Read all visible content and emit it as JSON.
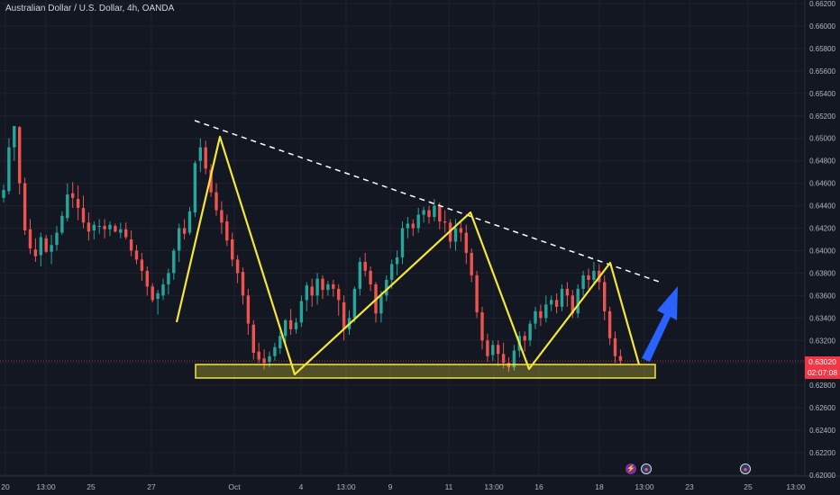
{
  "header": {
    "title": "Australian Dollar / U.S. Dollar, 4h, OANDA"
  },
  "price_badge": {
    "price": "0.63020",
    "countdown": "02:07:08"
  },
  "events": [
    {
      "icon": "lightning-icon",
      "glyph": "⚡"
    },
    {
      "icon": "us-flag-icon",
      "glyph": "●"
    },
    {
      "icon": "au-flag-icon",
      "glyph": "●"
    }
  ],
  "colors": {
    "background": "#131722",
    "grid": "#1e222d",
    "up": "#26a69a",
    "down": "#ef5350",
    "pattern": "#f5e63a",
    "trendline": "#ffffff",
    "arrow": "#2962ff",
    "current_price": "#f23645"
  },
  "chart_data": {
    "type": "candlestick",
    "symbol": "AUDUSD",
    "timeframe": "4h",
    "y_ticks": [
      "0.66200",
      "0.66000",
      "0.65800",
      "0.65600",
      "0.65400",
      "0.65200",
      "0.65000",
      "0.64800",
      "0.64600",
      "0.64400",
      "0.64200",
      "0.64000",
      "0.63800",
      "0.63600",
      "0.63400",
      "0.63200",
      "0.63000",
      "0.62800",
      "0.62600",
      "0.62400",
      "0.62200",
      "0.62000"
    ],
    "x_ticks": [
      "20",
      "13:00",
      "25",
      "27",
      "Oct",
      "4",
      "13:00",
      "9",
      "11",
      "13:00",
      "16",
      "18",
      "13:00",
      "23",
      "25",
      "13:00"
    ],
    "ylim": [
      0.62,
      0.662
    ],
    "current_price": 0.6302,
    "candles": [
      [
        0.6447,
        0.6454,
        0.6443,
        0.6459
      ],
      [
        0.6453,
        0.6492,
        0.645,
        0.65
      ],
      [
        0.6492,
        0.6511,
        0.648,
        0.6511
      ],
      [
        0.651,
        0.646,
        0.645,
        0.6511
      ],
      [
        0.646,
        0.6418,
        0.6414,
        0.6465
      ],
      [
        0.6419,
        0.6402,
        0.6397,
        0.6428
      ],
      [
        0.6401,
        0.6395,
        0.639,
        0.6411
      ],
      [
        0.6396,
        0.6412,
        0.6386,
        0.6416
      ],
      [
        0.6411,
        0.6399,
        0.6398,
        0.6414
      ],
      [
        0.6399,
        0.6405,
        0.6388,
        0.6414
      ],
      [
        0.6405,
        0.6416,
        0.64,
        0.6422
      ],
      [
        0.6416,
        0.6431,
        0.6414,
        0.6435
      ],
      [
        0.6429,
        0.645,
        0.6426,
        0.646
      ],
      [
        0.6451,
        0.6447,
        0.6438,
        0.6461
      ],
      [
        0.6446,
        0.6438,
        0.6427,
        0.6458
      ],
      [
        0.6438,
        0.6425,
        0.642,
        0.6449
      ],
      [
        0.6425,
        0.6417,
        0.6409,
        0.6434
      ],
      [
        0.6418,
        0.6423,
        0.641,
        0.6426
      ],
      [
        0.6422,
        0.6422,
        0.6415,
        0.6428
      ],
      [
        0.6422,
        0.6419,
        0.6411,
        0.6428
      ],
      [
        0.6419,
        0.6423,
        0.6413,
        0.6426
      ],
      [
        0.6422,
        0.6417,
        0.6416,
        0.6424
      ],
      [
        0.6416,
        0.6419,
        0.6411,
        0.6425
      ],
      [
        0.6419,
        0.6412,
        0.641,
        0.6425
      ],
      [
        0.641,
        0.64,
        0.6395,
        0.6418
      ],
      [
        0.64,
        0.6392,
        0.6388,
        0.6405
      ],
      [
        0.6392,
        0.6382,
        0.6373,
        0.6398
      ],
      [
        0.6382,
        0.6368,
        0.636,
        0.6386
      ],
      [
        0.6368,
        0.6356,
        0.6354,
        0.6371
      ],
      [
        0.6357,
        0.6362,
        0.6343,
        0.6365
      ],
      [
        0.636,
        0.637,
        0.6356,
        0.6375
      ],
      [
        0.637,
        0.638,
        0.6361,
        0.6384
      ],
      [
        0.638,
        0.64,
        0.6374,
        0.6402
      ],
      [
        0.64,
        0.642,
        0.639,
        0.6424
      ],
      [
        0.642,
        0.6415,
        0.641,
        0.6428
      ],
      [
        0.6416,
        0.6435,
        0.6414,
        0.6439
      ],
      [
        0.6434,
        0.6478,
        0.643,
        0.648
      ],
      [
        0.648,
        0.6492,
        0.647,
        0.65
      ],
      [
        0.6492,
        0.6473,
        0.6468,
        0.6498
      ],
      [
        0.6472,
        0.6452,
        0.6448,
        0.6477
      ],
      [
        0.6452,
        0.6436,
        0.6431,
        0.646
      ],
      [
        0.6436,
        0.6425,
        0.6415,
        0.6444
      ],
      [
        0.6426,
        0.6409,
        0.6404,
        0.6432
      ],
      [
        0.641,
        0.6392,
        0.6386,
        0.6416
      ],
      [
        0.6392,
        0.638,
        0.6371,
        0.6396
      ],
      [
        0.6381,
        0.636,
        0.6352,
        0.6385
      ],
      [
        0.636,
        0.6335,
        0.6325,
        0.6366
      ],
      [
        0.6334,
        0.6309,
        0.6303,
        0.6338
      ],
      [
        0.631,
        0.6303,
        0.63,
        0.6318
      ],
      [
        0.6304,
        0.63,
        0.6294,
        0.6312
      ],
      [
        0.6301,
        0.6306,
        0.6296,
        0.631
      ],
      [
        0.6306,
        0.6314,
        0.6302,
        0.6318
      ],
      [
        0.6313,
        0.6324,
        0.6308,
        0.6328
      ],
      [
        0.6324,
        0.6338,
        0.6315,
        0.6339
      ],
      [
        0.6338,
        0.633,
        0.6325,
        0.6348
      ],
      [
        0.633,
        0.6336,
        0.6326,
        0.634
      ],
      [
        0.6336,
        0.6355,
        0.6332,
        0.636
      ],
      [
        0.6356,
        0.6369,
        0.6346,
        0.6372
      ],
      [
        0.6368,
        0.636,
        0.635,
        0.6375
      ],
      [
        0.636,
        0.6375,
        0.6352,
        0.638
      ],
      [
        0.6375,
        0.6365,
        0.6357,
        0.6378
      ],
      [
        0.6365,
        0.637,
        0.636,
        0.6373
      ],
      [
        0.637,
        0.6366,
        0.6359,
        0.6374
      ],
      [
        0.6366,
        0.6356,
        0.6342,
        0.637
      ],
      [
        0.6354,
        0.633,
        0.632,
        0.636
      ],
      [
        0.633,
        0.634,
        0.6325,
        0.6347
      ],
      [
        0.634,
        0.6366,
        0.6336,
        0.6368
      ],
      [
        0.6366,
        0.639,
        0.636,
        0.6394
      ],
      [
        0.639,
        0.6382,
        0.6377,
        0.6398
      ],
      [
        0.6382,
        0.637,
        0.6364,
        0.6386
      ],
      [
        0.637,
        0.6344,
        0.6336,
        0.6372
      ],
      [
        0.6344,
        0.636,
        0.6336,
        0.6364
      ],
      [
        0.636,
        0.6374,
        0.6355,
        0.6378
      ],
      [
        0.6374,
        0.6388,
        0.6366,
        0.6392
      ],
      [
        0.6388,
        0.6394,
        0.6378,
        0.64
      ],
      [
        0.6394,
        0.642,
        0.6388,
        0.6426
      ],
      [
        0.642,
        0.6424,
        0.6411,
        0.643
      ],
      [
        0.6424,
        0.642,
        0.6413,
        0.6428
      ],
      [
        0.642,
        0.6432,
        0.6416,
        0.6438
      ],
      [
        0.6432,
        0.6436,
        0.6425,
        0.6439
      ],
      [
        0.6436,
        0.643,
        0.6424,
        0.644
      ],
      [
        0.643,
        0.644,
        0.6426,
        0.6446
      ],
      [
        0.644,
        0.6426,
        0.6419,
        0.6443
      ],
      [
        0.6426,
        0.6425,
        0.6416,
        0.6436
      ],
      [
        0.6425,
        0.6408,
        0.6402,
        0.6428
      ],
      [
        0.6408,
        0.642,
        0.64,
        0.6428
      ],
      [
        0.642,
        0.6416,
        0.6408,
        0.6425
      ],
      [
        0.6416,
        0.6398,
        0.6388,
        0.6423
      ],
      [
        0.6398,
        0.6378,
        0.6372,
        0.6402
      ],
      [
        0.6378,
        0.6345,
        0.634,
        0.6382
      ],
      [
        0.6345,
        0.632,
        0.6312,
        0.635
      ],
      [
        0.632,
        0.6306,
        0.6301,
        0.6326
      ],
      [
        0.6307,
        0.6316,
        0.6302,
        0.632
      ],
      [
        0.6316,
        0.6308,
        0.6297,
        0.632
      ],
      [
        0.6308,
        0.63,
        0.6295,
        0.6318
      ],
      [
        0.63,
        0.6296,
        0.6292,
        0.6305
      ],
      [
        0.6296,
        0.6311,
        0.6293,
        0.6316
      ],
      [
        0.6311,
        0.6324,
        0.6305,
        0.6328
      ],
      [
        0.6324,
        0.632,
        0.631,
        0.6328
      ],
      [
        0.632,
        0.6335,
        0.6315,
        0.6338
      ],
      [
        0.6335,
        0.6346,
        0.633,
        0.635
      ],
      [
        0.6346,
        0.634,
        0.6333,
        0.6352
      ],
      [
        0.634,
        0.6352,
        0.6336,
        0.636
      ],
      [
        0.6352,
        0.6356,
        0.6346,
        0.636
      ],
      [
        0.6356,
        0.635,
        0.6344,
        0.6362
      ],
      [
        0.635,
        0.6366,
        0.6346,
        0.637
      ],
      [
        0.6366,
        0.636,
        0.635,
        0.6372
      ],
      [
        0.636,
        0.6344,
        0.634,
        0.6365
      ],
      [
        0.6344,
        0.6366,
        0.634,
        0.637
      ],
      [
        0.6366,
        0.6378,
        0.636,
        0.6382
      ],
      [
        0.6378,
        0.6374,
        0.6366,
        0.6384
      ],
      [
        0.6374,
        0.6382,
        0.637,
        0.639
      ],
      [
        0.6382,
        0.6372,
        0.6365,
        0.6388
      ],
      [
        0.6372,
        0.6346,
        0.6338,
        0.6378
      ],
      [
        0.6346,
        0.6322,
        0.6316,
        0.635
      ],
      [
        0.6322,
        0.6306,
        0.63,
        0.6328
      ],
      [
        0.6306,
        0.6302,
        0.6298,
        0.6312
      ]
    ],
    "annotations": {
      "zigzag": [
        [
          0.6336,
          0.65,
          0.6293,
          0.6433,
          0.6295,
          0.6388,
          0.6301
        ]
      ],
      "trendline": "dashed descending resistance",
      "support_zone": [
        0.6288,
        0.6298
      ],
      "arrow": "up"
    }
  }
}
